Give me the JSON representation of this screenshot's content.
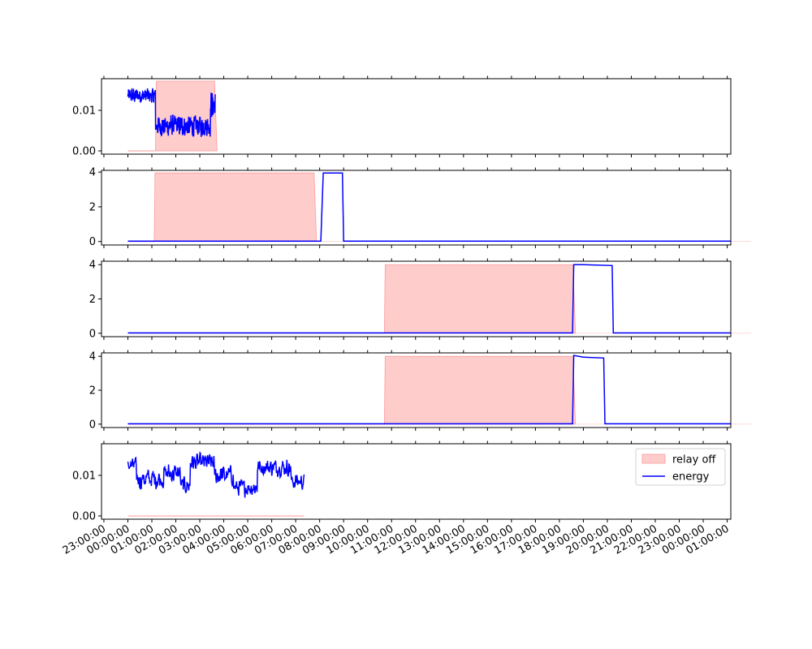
{
  "chart_data": {
    "type": "line",
    "x_axis": {
      "type": "time",
      "tick_labels": [
        "23:00:00",
        "00:00:00",
        "01:00:00",
        "02:00:00",
        "03:00:00",
        "04:00:00",
        "05:00:00",
        "06:00:00",
        "07:00:00",
        "08:00:00",
        "09:00:00",
        "10:00:00",
        "11:00:00",
        "12:00:00",
        "13:00:00",
        "14:00:00",
        "15:00:00",
        "16:00:00",
        "17:00:00",
        "18:00:00",
        "19:00:00",
        "20:00:00",
        "21:00:00",
        "22:00:00",
        "23:00:00",
        "00:00:00",
        "01:00:00"
      ],
      "tick_hours": [
        -1,
        0,
        1,
        2,
        3,
        4,
        5,
        6,
        7,
        8,
        9,
        10,
        11,
        12,
        13,
        14,
        15,
        16,
        17,
        18,
        19,
        20,
        21,
        22,
        23,
        24,
        25
      ],
      "xlim_hours": [
        -1.1,
        25.15
      ],
      "label_rotation_deg": 30
    },
    "legend": {
      "placement": "upper right of bottom panel",
      "entries": [
        {
          "label": "relay off",
          "color": "#ff9999",
          "kind": "fill"
        },
        {
          "label": "energy",
          "color": "#0000ff",
          "kind": "line"
        }
      ]
    },
    "colors": {
      "energy": "#0000ff",
      "relay_off_fill": "#ffcccc",
      "relay_off_edge": "#ff9999"
    },
    "panels": [
      {
        "ylim": [
          -0.0008,
          0.0178
        ],
        "yticks": [
          0.0,
          0.01
        ],
        "ytick_labels": [
          "0.00",
          "0.01"
        ],
        "relay_off": {
          "start": 1.15,
          "end": 3.65,
          "value": 0.0172
        },
        "series": [
          {
            "name": "energy",
            "style": "noise",
            "x_start": 0.0,
            "x_end": 3.65,
            "segments": [
              {
                "x0": 0.0,
                "x1": 1.15,
                "mean": 0.0136,
                "amp": 0.0022
              },
              {
                "x0": 1.15,
                "x1": 3.45,
                "mean": 0.0062,
                "amp": 0.003
              },
              {
                "x0": 3.45,
                "x1": 3.65,
                "mean": 0.0115,
                "amp": 0.004
              }
            ]
          }
        ]
      },
      {
        "ylim": [
          -0.2,
          4.1
        ],
        "yticks": [
          0,
          2,
          4
        ],
        "ytick_labels": [
          "0",
          "2",
          "4"
        ],
        "relay_off": {
          "start": 1.1,
          "end": 7.8,
          "value": 3.95
        },
        "series": [
          {
            "name": "energy",
            "style": "step",
            "points": [
              [
                0.0,
                0.02
              ],
              [
                8.05,
                0.02
              ],
              [
                8.15,
                3.95
              ],
              [
                8.95,
                3.95
              ],
              [
                9.0,
                0.02
              ],
              [
                26.0,
                0.02
              ]
            ]
          }
        ]
      },
      {
        "ylim": [
          -0.2,
          4.2
        ],
        "yticks": [
          0,
          2,
          4
        ],
        "ytick_labels": [
          "0",
          "2",
          "4"
        ],
        "relay_off": {
          "start": 10.7,
          "end": 18.6,
          "value": 4.0
        },
        "series": [
          {
            "name": "energy",
            "style": "step",
            "points": [
              [
                0.0,
                0.02
              ],
              [
                18.55,
                0.02
              ],
              [
                18.6,
                4.0
              ],
              [
                19.0,
                4.0
              ],
              [
                20.2,
                3.95
              ],
              [
                20.25,
                0.02
              ],
              [
                26.0,
                0.02
              ]
            ]
          }
        ]
      },
      {
        "ylim": [
          -0.2,
          4.2
        ],
        "yticks": [
          0,
          2,
          4
        ],
        "ytick_labels": [
          "0",
          "2",
          "4"
        ],
        "relay_off": {
          "start": 10.7,
          "end": 18.6,
          "value": 4.0
        },
        "series": [
          {
            "name": "energy",
            "style": "step",
            "points": [
              [
                0.0,
                0.02
              ],
              [
                18.55,
                0.02
              ],
              [
                18.6,
                4.05
              ],
              [
                19.0,
                3.95
              ],
              [
                19.85,
                3.9
              ],
              [
                19.9,
                0.02
              ],
              [
                26.0,
                0.02
              ]
            ]
          }
        ]
      },
      {
        "ylim": [
          -0.0008,
          0.0178
        ],
        "yticks": [
          0.0,
          0.01
        ],
        "ytick_labels": [
          "0.00",
          "0.01"
        ],
        "relay_off": null,
        "baseline": {
          "x0": 0.0,
          "x1": 7.35
        },
        "series": [
          {
            "name": "energy",
            "style": "noise",
            "x_start": 0.0,
            "x_end": 7.35,
            "segments": [
              {
                "x0": 0.0,
                "x1": 0.35,
                "mean": 0.0125,
                "amp": 0.002
              },
              {
                "x0": 0.35,
                "x1": 1.5,
                "mean": 0.0092,
                "amp": 0.003
              },
              {
                "x0": 1.5,
                "x1": 2.2,
                "mean": 0.0105,
                "amp": 0.003
              },
              {
                "x0": 2.2,
                "x1": 2.6,
                "mean": 0.0075,
                "amp": 0.0025
              },
              {
                "x0": 2.6,
                "x1": 3.6,
                "mean": 0.0132,
                "amp": 0.0025
              },
              {
                "x0": 3.6,
                "x1": 4.4,
                "mean": 0.01,
                "amp": 0.003
              },
              {
                "x0": 4.4,
                "x1": 5.4,
                "mean": 0.007,
                "amp": 0.0025
              },
              {
                "x0": 5.4,
                "x1": 6.8,
                "mean": 0.012,
                "amp": 0.0025
              },
              {
                "x0": 6.8,
                "x1": 7.35,
                "mean": 0.0085,
                "amp": 0.0025
              }
            ]
          }
        ]
      }
    ]
  }
}
